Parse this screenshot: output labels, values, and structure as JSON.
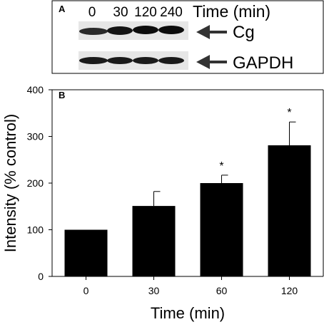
{
  "panel_a": {
    "label": "A",
    "time_header": "Time (min)",
    "lane_labels": [
      "0",
      "30",
      "120",
      "240"
    ],
    "blots": [
      {
        "name": "Cg",
        "lane_intensity": [
          0.55,
          0.75,
          0.85,
          0.85
        ]
      },
      {
        "name": "GAPDH",
        "lane_intensity": [
          0.8,
          0.8,
          0.8,
          0.8
        ]
      }
    ]
  },
  "chart_data": {
    "panel_label": "B",
    "type": "bar",
    "categories": [
      "0",
      "30",
      "60",
      "120"
    ],
    "values": [
      100,
      151,
      200,
      281
    ],
    "errors": [
      0,
      31,
      17,
      50
    ],
    "significance": [
      "",
      "",
      "*",
      "*"
    ],
    "xlabel": "Time (min)",
    "ylabel": "Intensity (% control)",
    "ylim": [
      0,
      400
    ],
    "yticks": [
      0,
      100,
      200,
      300,
      400
    ],
    "bar_color": "#000000",
    "grid": false
  }
}
